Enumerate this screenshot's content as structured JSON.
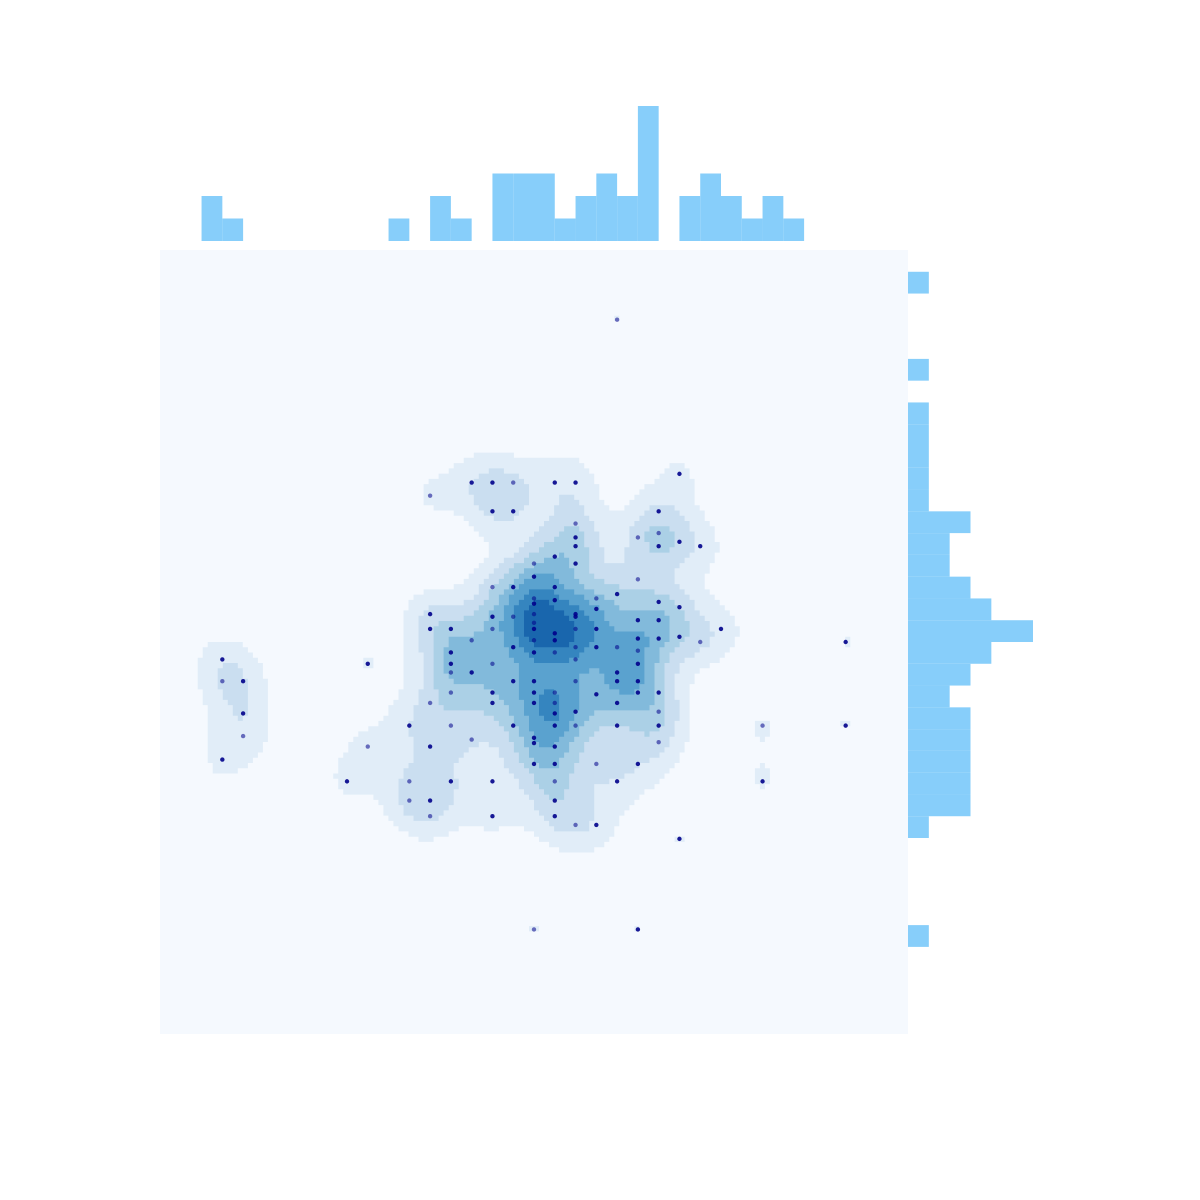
{
  "colors": {
    "background": "#ffffff",
    "joint_bg": "#f5f9fe",
    "marginal_bar": "#87cefa",
    "point": "#00008b",
    "contour_line": "#000000",
    "fill_levels": [
      "#e1edf8",
      "#cadef0",
      "#abd0e6",
      "#82badb",
      "#5aa2cf",
      "#3585bf",
      "#1966ad"
    ]
  },
  "chart_data": {
    "type": "jointplot",
    "title": "",
    "xlabel": "",
    "ylabel": "",
    "grid": false,
    "legend": "none",
    "xlim": [
      -4.5,
      4.5
    ],
    "ylim": [
      -4.5,
      4.5
    ],
    "kde_type": "filled density contours with outlines",
    "points": [
      [
        1.0,
        3.7
      ],
      [
        1.75,
        1.93
      ],
      [
        -1.25,
        0.32
      ],
      [
        -0.5,
        0.63
      ],
      [
        -0.25,
        0.63
      ],
      [
        0.25,
        0.63
      ],
      [
        0.75,
        0.5
      ],
      [
        0.75,
        0.38
      ],
      [
        -0.5,
        0.29
      ],
      [
        -0.25,
        0.29
      ],
      [
        0.5,
        0.29
      ],
      [
        1.75,
        0.06
      ],
      [
        0.5,
        -0.06
      ],
      [
        1.25,
        0.04
      ],
      [
        1.5,
        0.04
      ],
      [
        0.5,
        0.15
      ],
      [
        0.5,
        0.32
      ],
      [
        0.75,
        -0.06
      ],
      [
        1.0,
        -0.06
      ],
      [
        0.25,
        0.48
      ],
      [
        0.0,
        0.44
      ],
      [
        0.0,
        0.32
      ],
      [
        0.0,
        0.15
      ],
      [
        -0.25,
        -0.06
      ],
      [
        0.0,
        0.02
      ],
      [
        0.25,
        0.02
      ],
      [
        0.0,
        -0.12
      ],
      [
        0.25,
        -0.12
      ],
      [
        -1.0,
        -0.12
      ],
      [
        -0.75,
        -0.35
      ],
      [
        -1.0,
        -0.35
      ],
      [
        -0.25,
        -0.45
      ],
      [
        0.0,
        -0.45
      ],
      [
        0.5,
        -0.45
      ],
      [
        1.0,
        -0.45
      ],
      [
        1.25,
        -0.45
      ],
      [
        -1.0,
        -0.58
      ],
      [
        -0.5,
        -0.58
      ],
      [
        0.0,
        -0.58
      ],
      [
        0.25,
        -0.58
      ],
      [
        1.25,
        -0.58
      ],
      [
        1.5,
        -0.58
      ],
      [
        -1.25,
        -0.7
      ],
      [
        -0.5,
        -0.7
      ],
      [
        0.0,
        -0.7
      ],
      [
        0.25,
        -0.7
      ],
      [
        1.0,
        -0.7
      ],
      [
        -1.5,
        -0.96
      ],
      [
        -1.0,
        -0.96
      ],
      [
        -0.25,
        -0.96
      ],
      [
        0.25,
        -0.96
      ],
      [
        0.5,
        -0.96
      ],
      [
        1.0,
        -0.96
      ],
      [
        1.5,
        -0.96
      ],
      [
        2.75,
        -0.96
      ],
      [
        3.75,
        -0.96
      ],
      [
        -3.75,
        -0.2
      ],
      [
        -3.75,
        -0.45
      ],
      [
        -3.5,
        -0.45
      ],
      [
        -3.5,
        -0.82
      ],
      [
        -3.5,
        -1.08
      ],
      [
        -3.75,
        -1.35
      ],
      [
        -1.25,
        -1.2
      ],
      [
        -0.75,
        -1.12
      ],
      [
        0.0,
        -1.16
      ],
      [
        0.25,
        -1.2
      ],
      [
        1.5,
        -1.15
      ],
      [
        0.0,
        -1.4
      ],
      [
        0.25,
        -1.4
      ],
      [
        0.75,
        -1.4
      ],
      [
        1.25,
        -1.4
      ],
      [
        -2.25,
        -1.6
      ],
      [
        -1.5,
        -1.6
      ],
      [
        -1.0,
        -1.6
      ],
      [
        -0.5,
        -1.6
      ],
      [
        0.25,
        -1.6
      ],
      [
        1.0,
        -1.6
      ],
      [
        2.75,
        -1.6
      ],
      [
        -1.5,
        -1.82
      ],
      [
        -1.25,
        -1.82
      ],
      [
        0.25,
        -1.82
      ],
      [
        -1.25,
        -2.0
      ],
      [
        -0.5,
        -2.0
      ],
      [
        0.25,
        -2.0
      ],
      [
        0.5,
        -2.1
      ],
      [
        0.75,
        -2.1
      ],
      [
        1.75,
        -2.26
      ],
      [
        0.0,
        -3.3
      ],
      [
        1.25,
        -3.3
      ],
      [
        1.0,
        -0.35
      ],
      [
        1.25,
        -0.1
      ],
      [
        1.25,
        -0.25
      ],
      [
        0.75,
        -0.6
      ],
      [
        1.5,
        -0.8
      ],
      [
        -0.75,
        1.83
      ],
      [
        -0.5,
        1.83
      ],
      [
        -0.25,
        1.83
      ],
      [
        0.25,
        1.83
      ],
      [
        0.5,
        1.83
      ],
      [
        -1.25,
        1.68
      ],
      [
        -0.5,
        1.5
      ],
      [
        -0.25,
        1.5
      ],
      [
        0.5,
        1.36
      ],
      [
        0.5,
        1.1
      ],
      [
        1.5,
        1.5
      ],
      [
        1.5,
        1.25
      ],
      [
        1.5,
        1.1
      ],
      [
        1.75,
        1.15
      ],
      [
        1.25,
        1.2
      ],
      [
        2.0,
        1.1
      ],
      [
        0.5,
        1.2
      ],
      [
        0.0,
        0.9
      ],
      [
        0.5,
        0.9
      ],
      [
        0.25,
        0.98
      ],
      [
        -0.5,
        0.15
      ],
      [
        -1.25,
        0.15
      ],
      [
        -1.0,
        0.15
      ],
      [
        -0.75,
        0.02
      ],
      [
        0.0,
        0.75
      ],
      [
        1.0,
        0.55
      ],
      [
        1.25,
        0.72
      ],
      [
        1.5,
        0.46
      ],
      [
        2.25,
        0.15
      ],
      [
        2.0,
        0.0
      ],
      [
        3.75,
        0.0
      ],
      [
        -1.0,
        -0.25
      ],
      [
        -0.5,
        -0.25
      ],
      [
        1.25,
        0.25
      ],
      [
        1.5,
        0.25
      ],
      [
        0.0,
        0.5
      ],
      [
        0.25,
        0.1
      ],
      [
        0.75,
        0.15
      ],
      [
        0.0,
        0.22
      ],
      [
        1.75,
        0.4
      ],
      [
        -2.0,
        -0.25
      ],
      [
        -2.0,
        -1.2
      ],
      [
        0.0,
        -1.1
      ],
      [
        0.25,
        -0.82
      ],
      [
        0.5,
        -0.2
      ],
      [
        0.5,
        -0.8
      ]
    ],
    "marginal_x": {
      "bin_edges": [
        -4.0,
        -3.75,
        -3.5,
        -3.25,
        -3.0,
        -2.75,
        -2.5,
        -2.25,
        -2.0,
        -1.75,
        -1.5,
        -1.25,
        -1.0,
        -0.75,
        -0.5,
        -0.25,
        0.0,
        0.25,
        0.5,
        0.75,
        1.0,
        1.25,
        1.5,
        1.75,
        2.0,
        2.25,
        2.5,
        2.75,
        3.0,
        3.25,
        3.5,
        3.75,
        4.0
      ],
      "counts": [
        2,
        1,
        0,
        0,
        0,
        0,
        0,
        0,
        0,
        1,
        0,
        2,
        1,
        0,
        3,
        3,
        3,
        1,
        2,
        3,
        2,
        6,
        0,
        2,
        3,
        2,
        1,
        2,
        1,
        0,
        0,
        0
      ]
    },
    "marginal_y": {
      "bin_edges": [
        -4.5,
        -4.25,
        -4.0,
        -3.75,
        -3.5,
        -3.25,
        -3.0,
        -2.75,
        -2.5,
        -2.25,
        -2.0,
        -1.75,
        -1.5,
        -1.25,
        -1.0,
        -0.75,
        -0.5,
        -0.25,
        0.0,
        0.25,
        0.5,
        0.75,
        1.0,
        1.25,
        1.5,
        1.75,
        2.0,
        2.25,
        2.5,
        2.75,
        3.0,
        3.25,
        3.5,
        3.75,
        4.0,
        4.25,
        4.5
      ],
      "counts": [
        0,
        0,
        0,
        0,
        1,
        0,
        0,
        0,
        0,
        1,
        3,
        3,
        3,
        3,
        3,
        2,
        3,
        4,
        6,
        4,
        3,
        2,
        2,
        3,
        1,
        1,
        1,
        1,
        1,
        0,
        1,
        0,
        0,
        0,
        1,
        0
      ]
    }
  }
}
